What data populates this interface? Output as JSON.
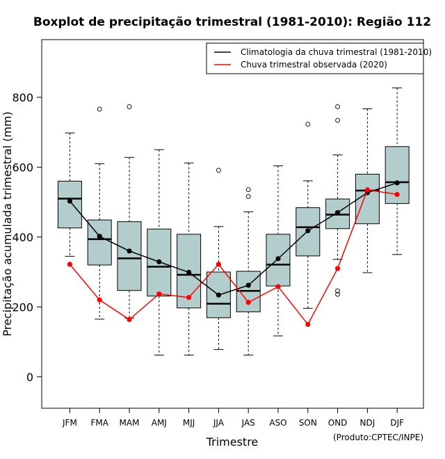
{
  "chart_data": {
    "type": "boxplot",
    "title": "Boxplot de precipitação trimestral (1981-2010): Região 112",
    "xlabel": "Trimestre",
    "ylabel": "Precipitação acumulada trimestral (mm)",
    "ylim": [
      -90,
      965
    ],
    "yticks": [
      0,
      200,
      400,
      600,
      800
    ],
    "credit": "(Produto:CPTEC/INPE)",
    "categories": [
      "JFM",
      "FMA",
      "MAM",
      "AMJ",
      "MJJ",
      "JJA",
      "JAS",
      "ASO",
      "SON",
      "OND",
      "NDJ",
      "DJF"
    ],
    "boxes": [
      {
        "min": 345,
        "q1": 426,
        "median": 510,
        "q3": 560,
        "max": 698,
        "outliers": []
      },
      {
        "min": 165,
        "q1": 320,
        "median": 394,
        "q3": 449,
        "max": 610,
        "outliers": [
          766
        ]
      },
      {
        "min": 168,
        "q1": 247,
        "median": 339,
        "q3": 444,
        "max": 628,
        "outliers": [
          773
        ]
      },
      {
        "min": 62,
        "q1": 231,
        "median": 315,
        "q3": 423,
        "max": 650,
        "outliers": []
      },
      {
        "min": 62,
        "q1": 197,
        "median": 292,
        "q3": 408,
        "max": 612,
        "outliers": []
      },
      {
        "min": 78,
        "q1": 169,
        "median": 209,
        "q3": 300,
        "max": 430,
        "outliers": [
          591
        ]
      },
      {
        "min": 62,
        "q1": 186,
        "median": 246,
        "q3": 302,
        "max": 472,
        "outliers": [
          516,
          536
        ]
      },
      {
        "min": 117,
        "q1": 260,
        "median": 321,
        "q3": 408,
        "max": 604,
        "outliers": []
      },
      {
        "min": 196,
        "q1": 346,
        "median": 428,
        "q3": 484,
        "max": 561,
        "outliers": [
          723
        ]
      },
      {
        "min": 336,
        "q1": 424,
        "median": 464,
        "q3": 509,
        "max": 635,
        "outliers": [
          236,
          246,
          734,
          773
        ]
      },
      {
        "min": 298,
        "q1": 438,
        "median": 533,
        "q3": 580,
        "max": 767,
        "outliers": []
      },
      {
        "min": 350,
        "q1": 496,
        "median": 557,
        "q3": 659,
        "max": 827,
        "outliers": []
      }
    ],
    "series": [
      {
        "name": "Climatologia da chuva trimestral (1981-2010)",
        "color": "#000000",
        "values": [
          503,
          402,
          360,
          329,
          299,
          234,
          262,
          338,
          418,
          470,
          527,
          555
        ]
      },
      {
        "name": "Chuva trimestral observada (2020)",
        "color": "#ff0000",
        "values": [
          322,
          220,
          164,
          237,
          227,
          322,
          213,
          258,
          150,
          310,
          535,
          522
        ]
      }
    ],
    "box_fill": "#b3cccc"
  }
}
